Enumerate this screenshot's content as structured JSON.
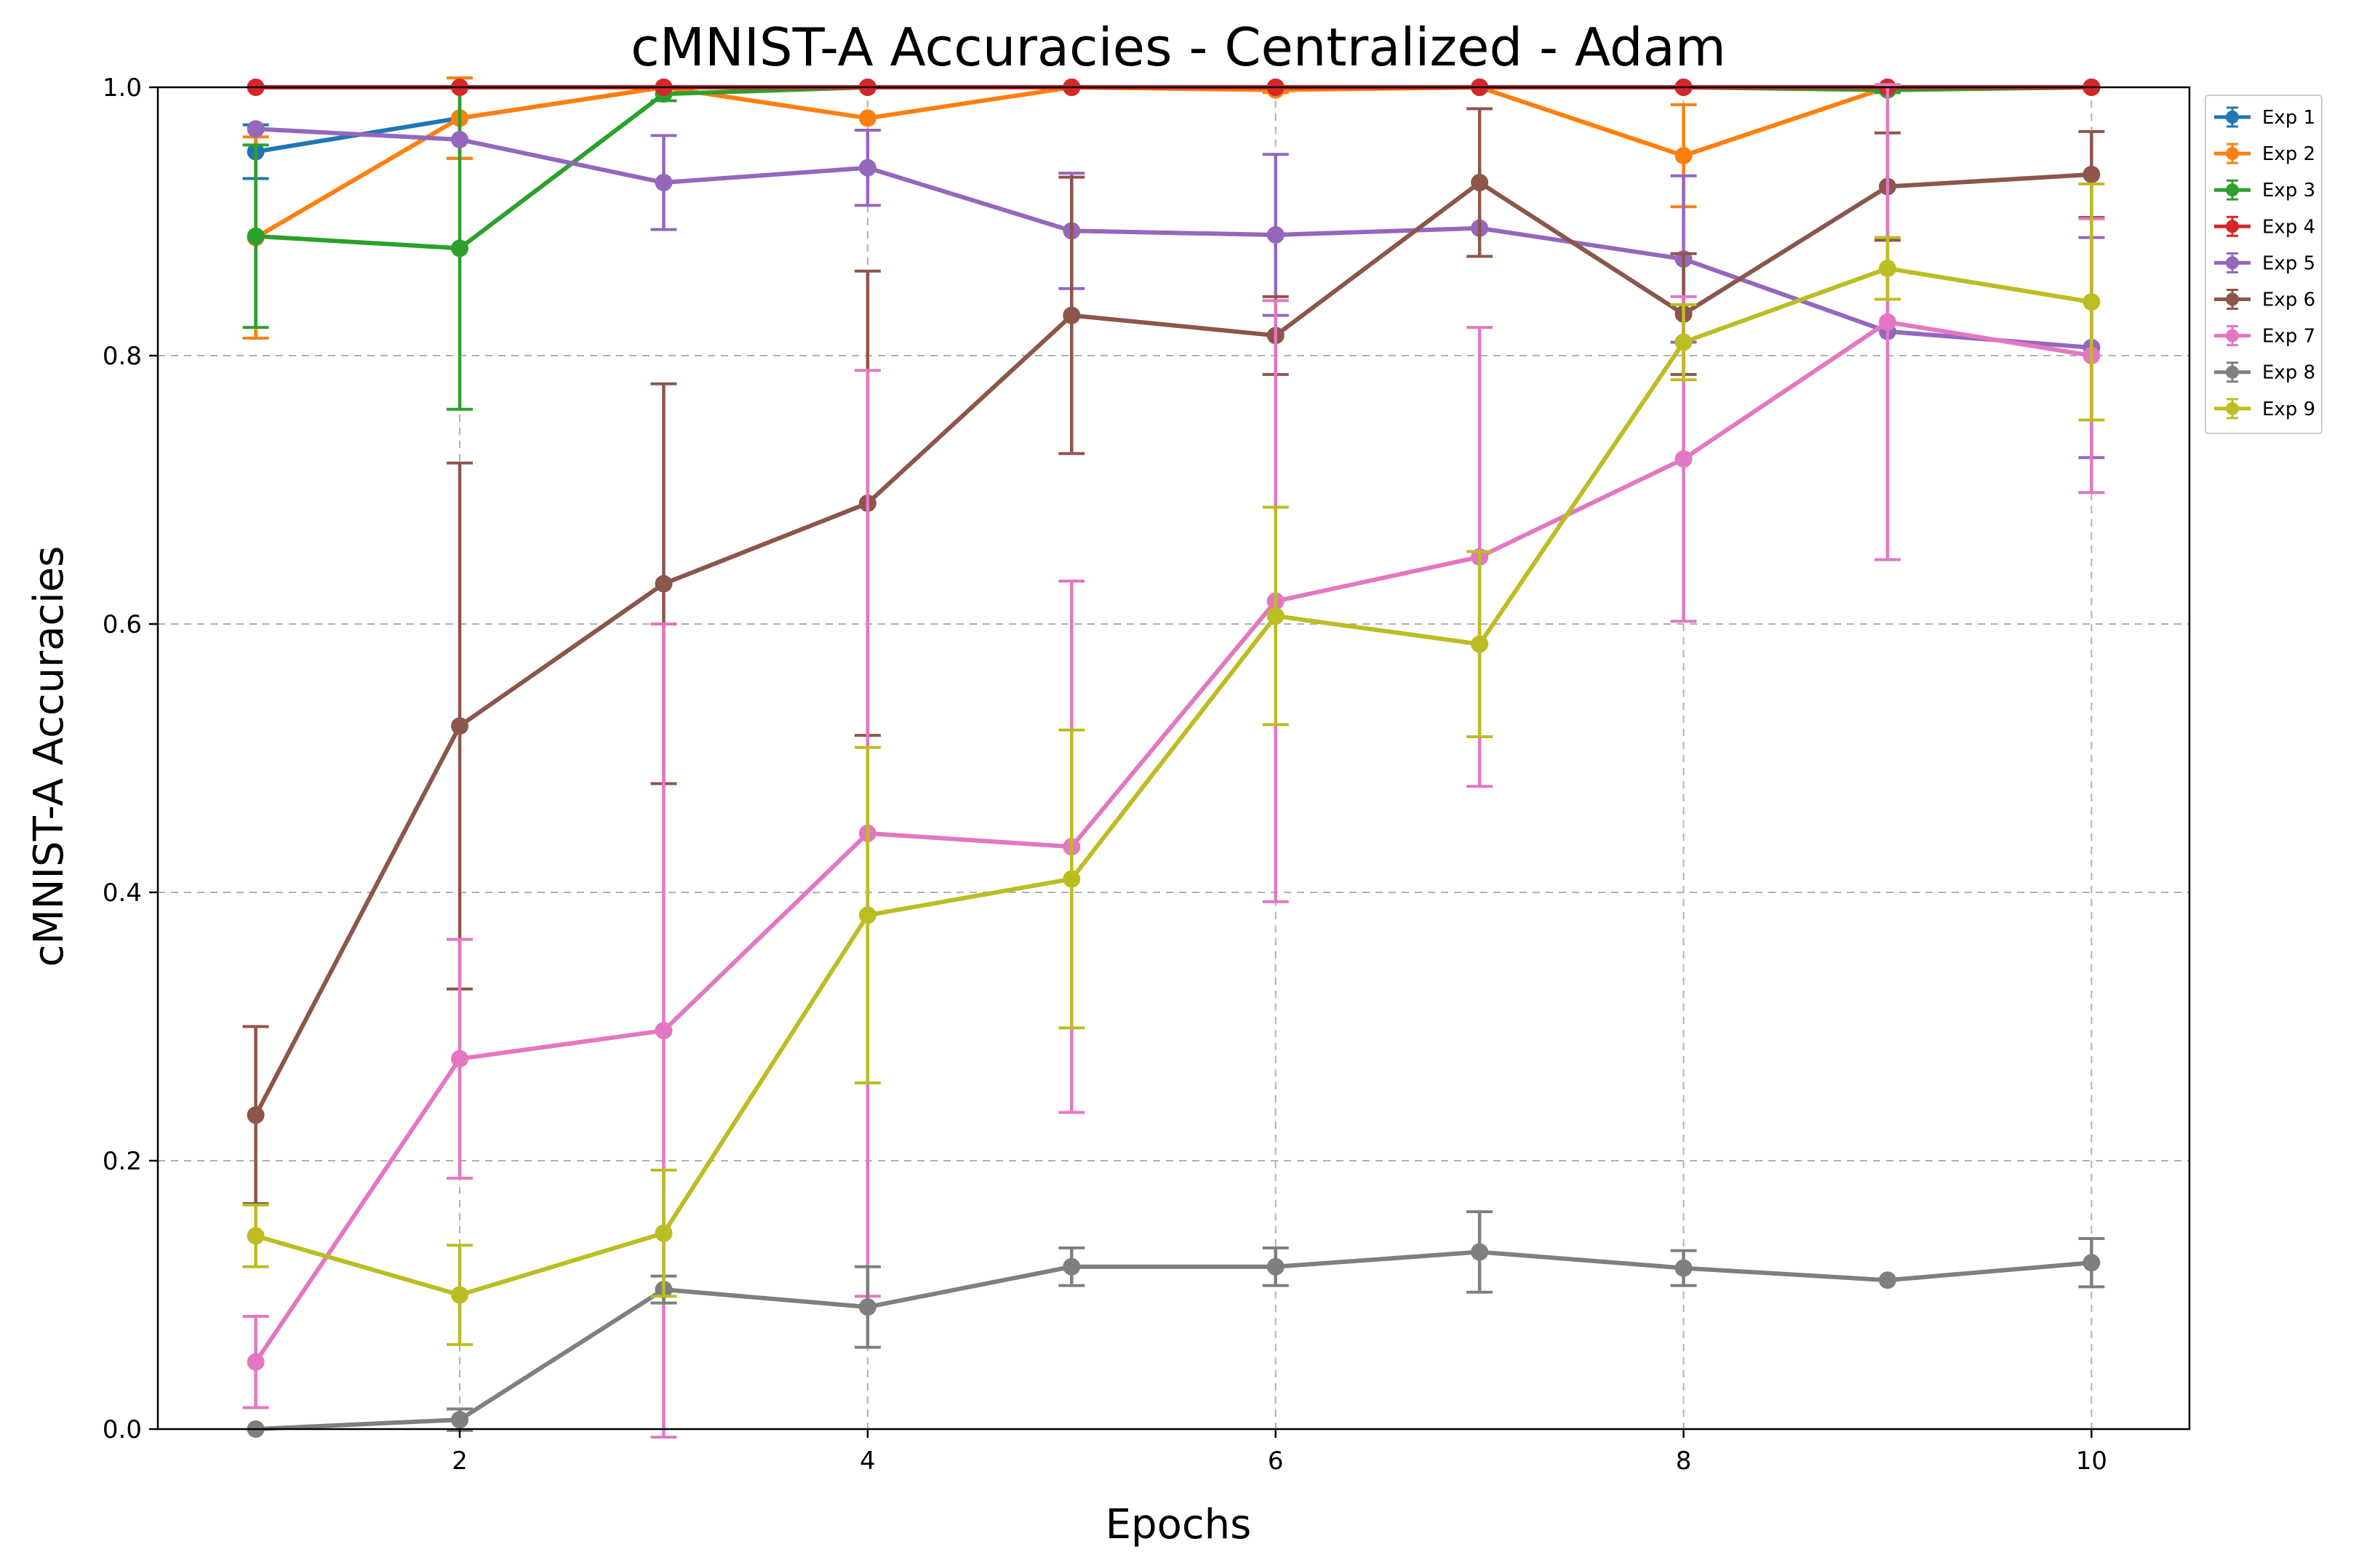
{
  "chart_data": {
    "type": "line",
    "title": "cMNIST-A Accuracies - Centralized - Adam",
    "xlabel": "Epochs",
    "ylabel": "cMNIST-A Accuracies",
    "xlim": [
      0.52,
      10.48
    ],
    "ylim": [
      0.0,
      1.0
    ],
    "xticks": [
      "2",
      "4",
      "6",
      "8",
      "10"
    ],
    "yticks": [
      "0.0",
      "0.2",
      "0.4",
      "0.6",
      "0.8",
      "1.0"
    ],
    "grid": true,
    "legend_position": "outside-right-top",
    "x": [
      1,
      2,
      3,
      4,
      5,
      6,
      7,
      8,
      9,
      10
    ],
    "series": [
      {
        "name": "Exp 1",
        "color": "#1f77b4",
        "values": [
          0.952,
          0.977,
          1.0,
          1.0,
          1.0,
          1.0,
          1.0,
          1.0,
          1.0,
          1.0
        ],
        "errors": [
          0.02,
          0.03,
          0.0,
          0.0,
          0.0,
          0.0,
          0.0,
          0.0,
          0.0,
          0.0
        ]
      },
      {
        "name": "Exp 2",
        "color": "#ff7f0e",
        "values": [
          0.888,
          0.977,
          1.0,
          0.977,
          1.0,
          0.998,
          1.0,
          0.949,
          1.0,
          1.0
        ],
        "errors": [
          0.075,
          0.03,
          0.0,
          0.0,
          0.0,
          0.002,
          0.0,
          0.038,
          0.0,
          0.0
        ]
      },
      {
        "name": "Exp 3",
        "color": "#2ca02c",
        "values": [
          0.889,
          0.88,
          0.995,
          1.0,
          1.0,
          1.0,
          1.0,
          1.0,
          0.998,
          1.0
        ],
        "errors": [
          0.068,
          0.12,
          0.005,
          0.0,
          0.0,
          0.0,
          0.0,
          0.0,
          0.002,
          0.0
        ]
      },
      {
        "name": "Exp 4",
        "color": "#d62728",
        "values": [
          1.0,
          1.0,
          1.0,
          1.0,
          1.0,
          1.0,
          1.0,
          1.0,
          1.0,
          1.0
        ],
        "errors": [
          0.0,
          0.0,
          0.0,
          0.0,
          0.0,
          0.0,
          0.0,
          0.0,
          0.0,
          0.0
        ]
      },
      {
        "name": "Exp 5",
        "color": "#9467bd",
        "values": [
          0.969,
          0.961,
          0.929,
          0.94,
          0.893,
          0.89,
          0.895,
          0.872,
          0.818,
          0.806
        ],
        "errors": [
          0.0,
          0.0,
          0.035,
          0.028,
          0.043,
          0.06,
          0.0,
          0.062,
          0.0,
          0.082
        ]
      },
      {
        "name": "Exp 6",
        "color": "#8c564b",
        "values": [
          0.234,
          0.524,
          0.63,
          0.69,
          0.83,
          0.815,
          0.929,
          0.831,
          0.926,
          0.935
        ],
        "errors": [
          0.066,
          0.196,
          0.149,
          0.173,
          0.103,
          0.029,
          0.055,
          0.045,
          0.04,
          0.032
        ]
      },
      {
        "name": "Exp 7",
        "color": "#e377c2",
        "values": [
          0.05,
          0.276,
          0.297,
          0.444,
          0.434,
          0.617,
          0.65,
          0.723,
          0.825,
          0.8
        ],
        "errors": [
          0.034,
          0.089,
          0.303,
          0.345,
          0.198,
          0.224,
          0.171,
          0.121,
          0.177,
          0.102
        ]
      },
      {
        "name": "Exp 8",
        "color": "#7f7f7f",
        "values": [
          0.0,
          0.007,
          0.104,
          0.091,
          0.121,
          0.121,
          0.132,
          0.12,
          0.111,
          0.124
        ],
        "errors": [
          0.0,
          0.008,
          0.01,
          0.03,
          0.014,
          0.014,
          0.03,
          0.013,
          0.0,
          0.018
        ]
      },
      {
        "name": "Exp 9",
        "color": "#bcbd22",
        "values": [
          0.144,
          0.1,
          0.146,
          0.383,
          0.41,
          0.606,
          0.585,
          0.81,
          0.865,
          0.84
        ],
        "errors": [
          0.023,
          0.037,
          0.047,
          0.125,
          0.111,
          0.081,
          0.069,
          0.028,
          0.023,
          0.088
        ]
      }
    ]
  }
}
